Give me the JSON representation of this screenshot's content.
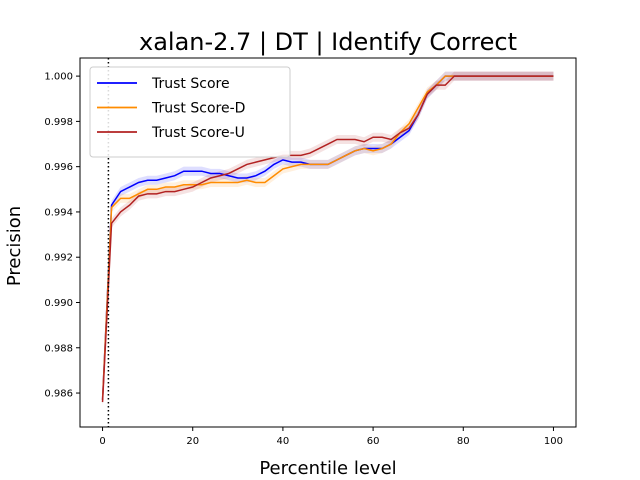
{
  "chart_data": {
    "type": "line",
    "title": "xalan-2.7 | DT | Identify Correct",
    "xlabel": "Percentile level",
    "ylabel": "Precision",
    "xlim": [
      -5,
      105
    ],
    "ylim": [
      0.9845,
      1.0008
    ],
    "x_ticks": [
      0,
      20,
      40,
      60,
      80,
      100
    ],
    "y_ticks": [
      0.986,
      0.988,
      0.99,
      0.992,
      0.994,
      0.996,
      0.998,
      1.0
    ],
    "x_tick_labels": [
      "0",
      "20",
      "40",
      "60",
      "80",
      "100"
    ],
    "y_tick_labels": [
      "0.986",
      "0.988",
      "0.990",
      "0.992",
      "0.994",
      "0.996",
      "0.998",
      "1.000"
    ],
    "grid": false,
    "legend_position": "upper-left",
    "vertical_line": {
      "x": 1.3,
      "style": "dotted",
      "color": "#000000"
    },
    "series": [
      {
        "name": "Trust Score",
        "color": "#0000ff",
        "band": 0.0002,
        "x": [
          0,
          2,
          4,
          6,
          8,
          10,
          12,
          14,
          16,
          18,
          20,
          22,
          24,
          26,
          28,
          30,
          32,
          34,
          36,
          38,
          40,
          42,
          44,
          46,
          48,
          50,
          52,
          54,
          56,
          58,
          60,
          62,
          64,
          66,
          68,
          70,
          72,
          74,
          76,
          78,
          80,
          85,
          90,
          95,
          100
        ],
        "values": [
          0.9857,
          0.9943,
          0.9949,
          0.9951,
          0.9953,
          0.9954,
          0.9954,
          0.9955,
          0.9956,
          0.9958,
          0.9958,
          0.9958,
          0.9957,
          0.9957,
          0.9956,
          0.9955,
          0.9955,
          0.9956,
          0.9958,
          0.9961,
          0.9963,
          0.9962,
          0.9962,
          0.9961,
          0.9961,
          0.9961,
          0.9963,
          0.9965,
          0.9967,
          0.9968,
          0.9968,
          0.9968,
          0.997,
          0.9973,
          0.9976,
          0.9983,
          0.9992,
          0.9996,
          1.0,
          1.0,
          1.0,
          1.0,
          1.0,
          1.0,
          1.0
        ]
      },
      {
        "name": "Trust Score-D",
        "color": "#ff8c00",
        "band": 0.0002,
        "x": [
          0,
          2,
          4,
          6,
          8,
          10,
          12,
          14,
          16,
          18,
          20,
          22,
          24,
          26,
          28,
          30,
          32,
          34,
          36,
          38,
          40,
          42,
          44,
          46,
          48,
          50,
          52,
          54,
          56,
          58,
          60,
          62,
          64,
          66,
          68,
          70,
          72,
          74,
          76,
          78,
          80,
          85,
          90,
          95,
          100
        ],
        "values": [
          0.9857,
          0.9942,
          0.9946,
          0.9946,
          0.9948,
          0.995,
          0.995,
          0.9951,
          0.9951,
          0.9952,
          0.9952,
          0.9952,
          0.9953,
          0.9953,
          0.9953,
          0.9953,
          0.9954,
          0.9953,
          0.9953,
          0.9956,
          0.9959,
          0.996,
          0.9961,
          0.9961,
          0.9961,
          0.9961,
          0.9963,
          0.9965,
          0.9967,
          0.9968,
          0.9967,
          0.9968,
          0.997,
          0.9975,
          0.9979,
          0.9986,
          0.9993,
          0.9996,
          1.0,
          1.0,
          1.0,
          1.0,
          1.0,
          1.0,
          1.0
        ]
      },
      {
        "name": "Trust Score-U",
        "color": "#b22222",
        "band": 0.0002,
        "x": [
          0,
          2,
          4,
          6,
          8,
          10,
          12,
          14,
          16,
          18,
          20,
          22,
          24,
          26,
          28,
          30,
          32,
          34,
          36,
          38,
          40,
          42,
          44,
          46,
          48,
          50,
          52,
          54,
          56,
          58,
          60,
          62,
          64,
          66,
          68,
          70,
          72,
          74,
          76,
          78,
          80,
          85,
          90,
          95,
          100
        ],
        "values": [
          0.9856,
          0.9935,
          0.994,
          0.9943,
          0.9947,
          0.9948,
          0.9948,
          0.9949,
          0.9949,
          0.995,
          0.9951,
          0.9953,
          0.9955,
          0.9956,
          0.9957,
          0.9959,
          0.9961,
          0.9962,
          0.9963,
          0.9964,
          0.9965,
          0.9965,
          0.9965,
          0.9966,
          0.9968,
          0.997,
          0.9972,
          0.9972,
          0.9972,
          0.9971,
          0.9973,
          0.9973,
          0.9972,
          0.9975,
          0.9977,
          0.9983,
          0.9992,
          0.9996,
          0.9996,
          1.0,
          1.0,
          1.0,
          1.0,
          1.0,
          1.0
        ]
      }
    ]
  }
}
